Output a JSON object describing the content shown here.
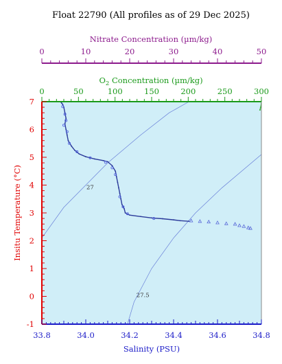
{
  "chart_data": {
    "type": "scatter",
    "title": "Float 22790  (All profiles as of 29 Dec 2025)",
    "x_axis": {
      "label": "Salinity (PSU)",
      "min": 33.8,
      "max": 34.8,
      "ticks": [
        "33.8",
        "34.0",
        "34.2",
        "34.4",
        "34.6",
        "34.8"
      ],
      "color": "#1c1cc8"
    },
    "y_axis": {
      "label": "Insitu Temperature (°C)",
      "min": -1,
      "max": 7,
      "ticks": [
        "-1",
        "0",
        "1",
        "2",
        "3",
        "4",
        "5",
        "6",
        "7"
      ],
      "color": "#e00000"
    },
    "oxygen_axis": {
      "label_prefix": "O",
      "label_sub": "2",
      "label_suffix": " Concentration (µm/kg)",
      "min": 0,
      "max": 300,
      "ticks": [
        "0",
        "50",
        "100",
        "150",
        "200",
        "250",
        "300"
      ],
      "color": "#1a9a1a"
    },
    "nitrate_axis": {
      "label": "Nitrate Concentration (µm/kg)",
      "min": 0,
      "max": 50,
      "ticks": [
        "0",
        "10",
        "20",
        "30",
        "40",
        "50"
      ],
      "color": "#8c1a8c"
    },
    "density_contours": [
      {
        "label": "27",
        "label_at": [
          34.02,
          3.85
        ]
      },
      {
        "label": "27.5",
        "label_at": [
          34.26,
          -0.02
        ]
      }
    ],
    "series": [
      {
        "kind": "ts-line",
        "color": "#2b3a9a",
        "points": [
          [
            33.885,
            7.0
          ],
          [
            33.89,
            6.95
          ],
          [
            33.895,
            6.9
          ],
          [
            33.9,
            6.8
          ],
          [
            33.905,
            6.6
          ],
          [
            33.91,
            6.4
          ],
          [
            33.905,
            6.2
          ],
          [
            33.91,
            6.0
          ],
          [
            33.915,
            5.8
          ],
          [
            33.92,
            5.6
          ],
          [
            33.935,
            5.4
          ],
          [
            33.95,
            5.25
          ],
          [
            33.97,
            5.12
          ],
          [
            34.0,
            5.02
          ],
          [
            34.04,
            4.94
          ],
          [
            34.08,
            4.88
          ],
          [
            34.1,
            4.84
          ],
          [
            34.12,
            4.7
          ],
          [
            34.135,
            4.5
          ],
          [
            34.14,
            4.3
          ],
          [
            34.145,
            4.1
          ],
          [
            34.15,
            3.9
          ],
          [
            34.155,
            3.7
          ],
          [
            34.16,
            3.5
          ],
          [
            34.165,
            3.3
          ],
          [
            34.175,
            3.15
          ],
          [
            34.18,
            3.0
          ],
          [
            34.2,
            2.92
          ],
          [
            34.25,
            2.87
          ],
          [
            34.3,
            2.82
          ],
          [
            34.35,
            2.79
          ],
          [
            34.4,
            2.75
          ],
          [
            34.43,
            2.72
          ],
          [
            34.47,
            2.7
          ]
        ]
      },
      {
        "kind": "ts-profile-scatter",
        "color": "#5060e0",
        "points": [
          [
            33.895,
            6.82
          ],
          [
            33.905,
            6.55
          ],
          [
            33.91,
            6.32
          ],
          [
            33.9,
            6.15
          ],
          [
            33.915,
            5.92
          ],
          [
            33.925,
            5.5
          ],
          [
            33.96,
            5.2
          ],
          [
            34.02,
            4.98
          ],
          [
            34.09,
            4.82
          ],
          [
            34.12,
            4.62
          ],
          [
            34.135,
            4.38
          ],
          [
            34.155,
            3.58
          ],
          [
            34.17,
            3.22
          ],
          [
            34.19,
            2.97
          ],
          [
            34.31,
            2.8
          ]
        ]
      },
      {
        "kind": "ts-triangles",
        "color": "#5a6ad8",
        "points": [
          [
            34.48,
            2.72
          ],
          [
            34.52,
            2.7
          ],
          [
            34.56,
            2.68
          ],
          [
            34.6,
            2.65
          ],
          [
            34.64,
            2.62
          ],
          [
            34.68,
            2.6
          ],
          [
            34.7,
            2.55
          ],
          [
            34.72,
            2.52
          ],
          [
            34.74,
            2.47
          ],
          [
            34.75,
            2.45
          ]
        ]
      },
      {
        "kind": "oxygen-profile",
        "color": "#3cb33c",
        "points": [
          [
            298,
            6.7
          ],
          [
            299,
            6.8
          ],
          [
            300,
            6.95
          ]
        ]
      }
    ]
  }
}
